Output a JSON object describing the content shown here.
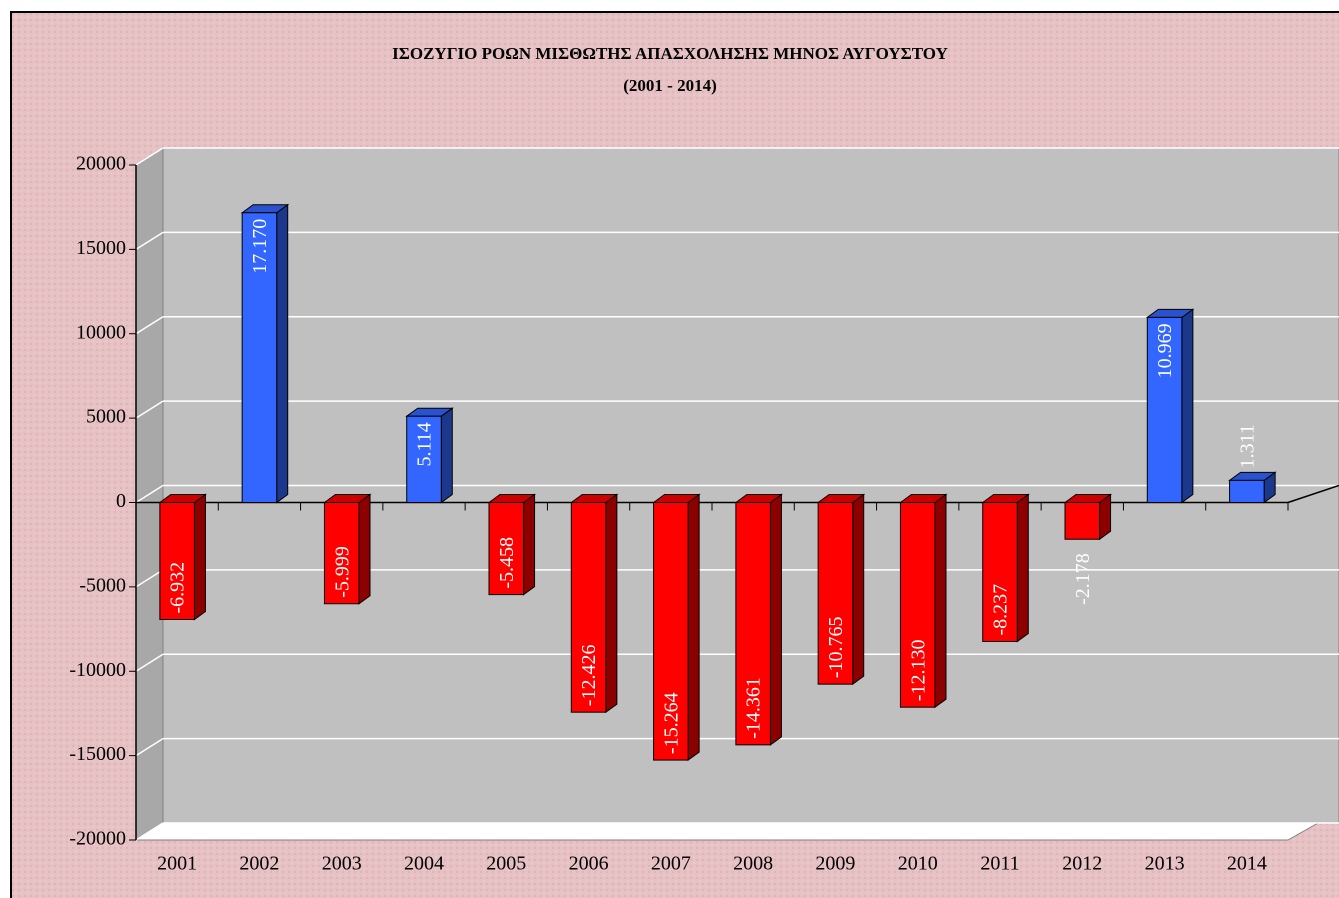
{
  "chart_data": {
    "type": "bar3d",
    "title": "ΙΣΟΖΥΓΙΟ ΡΟΩΝ ΜΙΣΘΩΤΗΣ ΑΠΑΣΧΟΛΗΣΗΣ ΜΗΝΟΣ  ΑΥΓΟΥΣΤΟΥ",
    "subtitle": "(2001 - 2014)",
    "categories": [
      "2001",
      "2002",
      "2003",
      "2004",
      "2005",
      "2006",
      "2007",
      "2008",
      "2009",
      "2010",
      "2011",
      "2012",
      "2013",
      "2014"
    ],
    "values": [
      -6932,
      17170,
      -5999,
      5114,
      -5458,
      -12426,
      -15264,
      -14361,
      -10765,
      -12130,
      -8237,
      -2178,
      10969,
      1311
    ],
    "value_labels": [
      "-6.932",
      "17.170",
      "-5.999",
      "5.114",
      "-5.458",
      "-12.426",
      "-15.264",
      "-14.361",
      "-10.765",
      "-12.130",
      "-8.237",
      "-2.178",
      "10.969",
      "1.311"
    ],
    "positive_color": "#3366ff",
    "negative_color": "#ff0000",
    "ylim": [
      -20000,
      20000
    ],
    "yticks": [
      -20000,
      -15000,
      -10000,
      -5000,
      0,
      5000,
      10000,
      15000,
      20000
    ],
    "grid": true
  }
}
